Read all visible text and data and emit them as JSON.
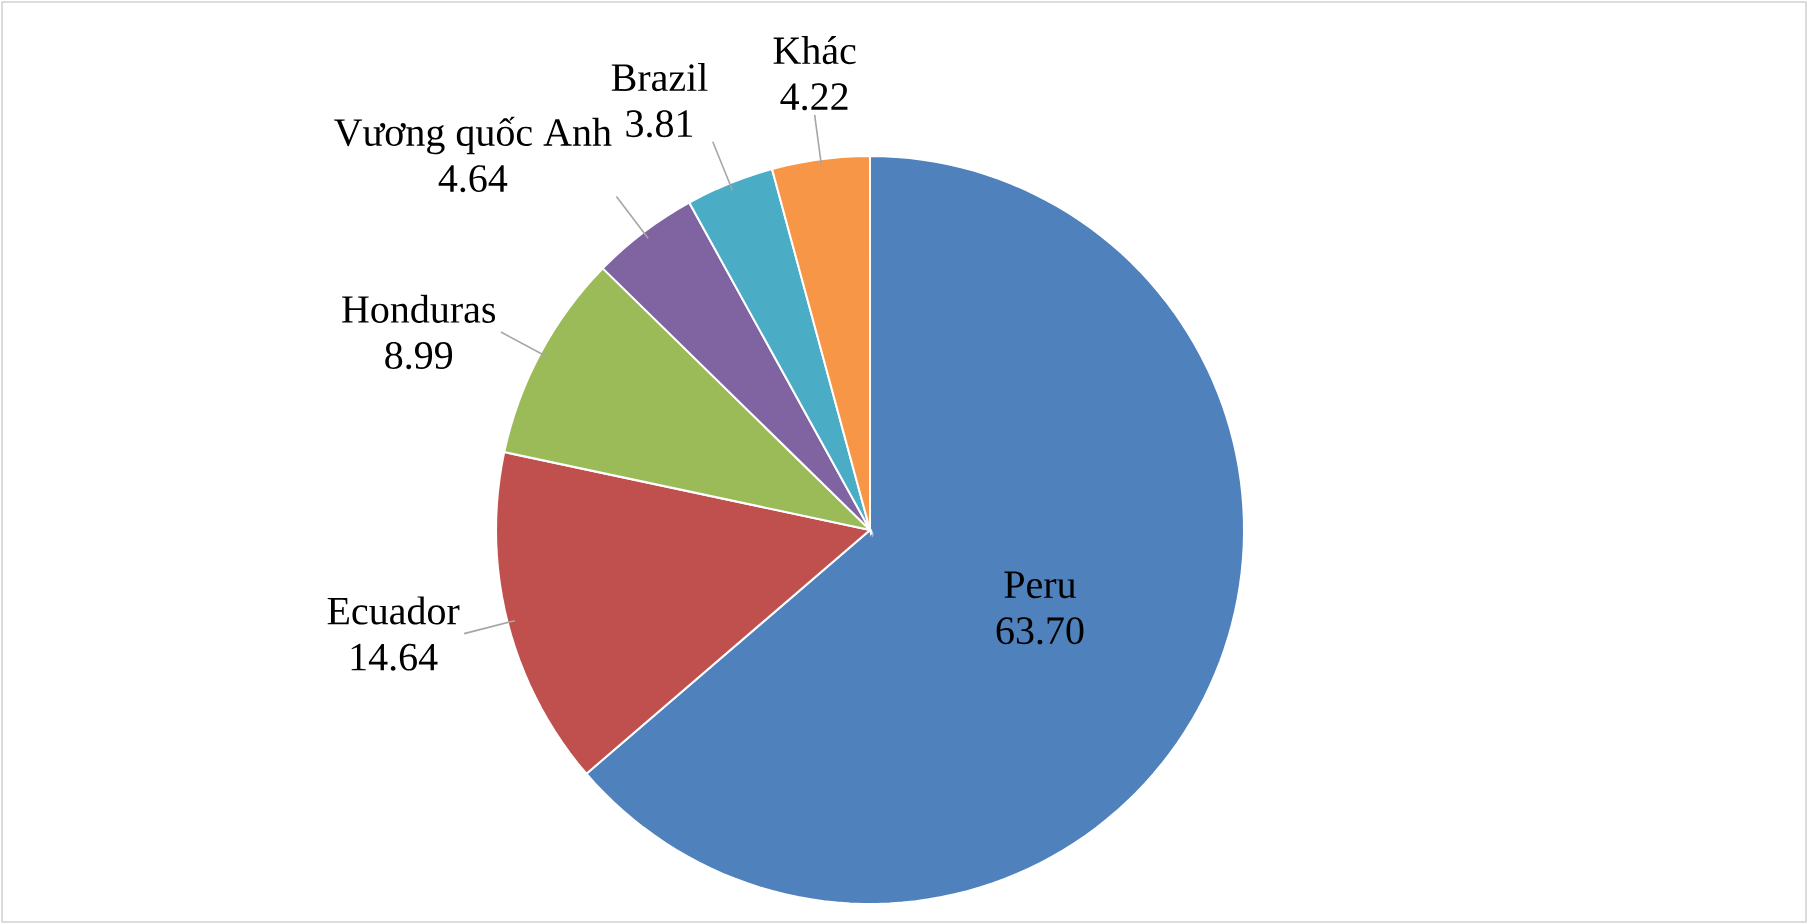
{
  "chart_data": {
    "type": "pie",
    "categories": [
      "Peru",
      "Ecuador",
      "Honduras",
      "Vương quốc Anh",
      "Brazil",
      "Khác"
    ],
    "values": [
      63.7,
      14.64,
      8.99,
      4.64,
      3.81,
      4.22
    ],
    "value_labels": [
      "63.70",
      "14.64",
      "8.99",
      "4.64",
      "3.81",
      "4.22"
    ],
    "colors": [
      "#4f81bd",
      "#c0504d",
      "#9bbb59",
      "#8064a2",
      "#4bacc6",
      "#f79646"
    ]
  }
}
